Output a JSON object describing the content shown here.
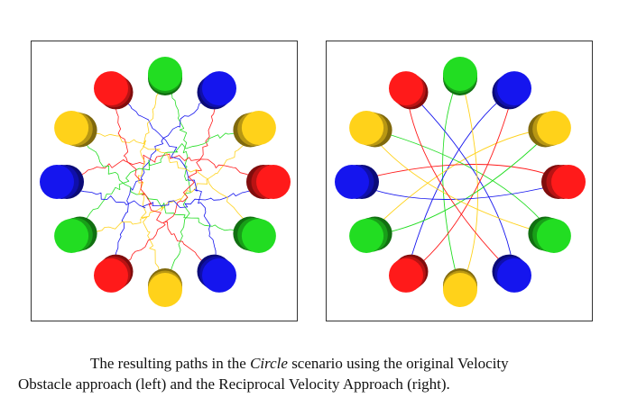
{
  "figure": {
    "caption": {
      "part1": "The resulting paths in the ",
      "scenario": "Circle",
      "part2": " scenario using the original Velocity",
      "part3": "Obstacle approach (left) and the Reciprocal Velocity Approach (right)."
    }
  },
  "colors": {
    "red": "#ff1a1a",
    "green": "#22dd22",
    "blue": "#1515ee",
    "yellow": "#ffd21a"
  },
  "robots": [
    {
      "color": "green"
    },
    {
      "color": "blue"
    },
    {
      "color": "yellow"
    },
    {
      "color": "red"
    },
    {
      "color": "green"
    },
    {
      "color": "blue"
    },
    {
      "color": "yellow"
    },
    {
      "color": "red"
    },
    {
      "color": "green"
    },
    {
      "color": "blue"
    },
    {
      "color": "yellow"
    },
    {
      "color": "red"
    }
  ]
}
